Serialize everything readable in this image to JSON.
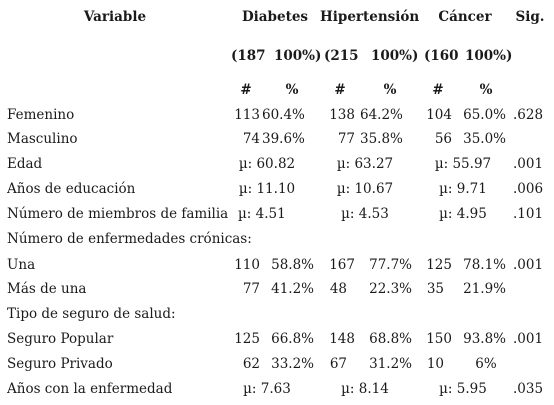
{
  "headers": {
    "variable": "Variable",
    "diabetes": "Diabetes",
    "hipertension": "Hipertensión",
    "cancer": "Cáncer",
    "sig": "Sig."
  },
  "totals": {
    "diabetes": "(187",
    "diabetes_pct": "100%)",
    "hipertension": "(215",
    "hipertension_pct": "100%)",
    "cancer": "(160",
    "cancer_pct": "100%)"
  },
  "subheaders": {
    "count": "#",
    "pct": "%"
  },
  "rows": {
    "femenino": {
      "label": "Femenino",
      "d_n": "113",
      "d_p": "60.4%",
      "h_n": "138",
      "h_p": "64.2%",
      "c_n": "104",
      "c_p": "65.0%",
      "sig": ".628"
    },
    "masculino": {
      "label": "Masculino",
      "d_n": "74",
      "d_p": "39.6%",
      "h_n": "77",
      "h_p": "35.8%",
      "c_n": "56",
      "c_p": "35.0%",
      "sig": ""
    },
    "edad": {
      "label": "Edad",
      "d": "µ: 60.82",
      "h": "µ: 63.27",
      "c": "µ: 55.97",
      "sig": ".001"
    },
    "educacion": {
      "label": "Años de educación",
      "d": "µ: 11.10",
      "h": "µ: 10.67",
      "c": "µ: 9.71",
      "sig": ".006"
    },
    "familia": {
      "label": "Número de miembros de familia",
      "d": "µ: 4.51",
      "h": "µ: 4.53",
      "c": "µ: 4.95",
      "sig": ".101"
    },
    "cronicas": {
      "label": "Número de enfermedades crónicas:"
    },
    "una": {
      "label": "Una",
      "d_n": "110",
      "d_p": "58.8%",
      "h_n": "167",
      "h_p": "77.7%",
      "c_n": "125",
      "c_p": "78.1%",
      "sig": ".001"
    },
    "masdeuna": {
      "label": "Más de una",
      "d_n": "77",
      "d_p": "41.2%",
      "h_n": "48",
      "h_p": "22.3%",
      "c_n": "35",
      "c_p": "21.9%",
      "sig": ""
    },
    "seguro": {
      "label": "Tipo de seguro de salud:"
    },
    "popular": {
      "label": "Seguro Popular",
      "d_n": "125",
      "d_p": "66.8%",
      "h_n": "148",
      "h_p": "68.8%",
      "c_n": "150",
      "c_p": "93.8%",
      "sig": ".001"
    },
    "privado": {
      "label": "Seguro Privado",
      "d_n": "62",
      "d_p": "33.2%",
      "h_n": "67",
      "h_p": "31.2%",
      "c_n": "10",
      "c_p": "6%",
      "sig": ""
    },
    "anios": {
      "label": "Años con la enfermedad",
      "d": "µ: 7.63",
      "h": "µ: 8.14",
      "c": "µ: 5.95",
      "sig": ".035"
    }
  }
}
